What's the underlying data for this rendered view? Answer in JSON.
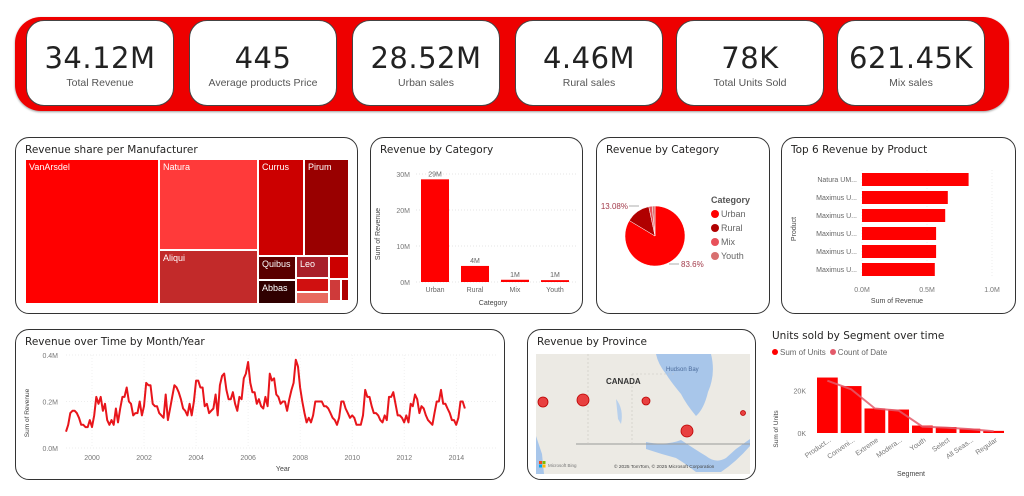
{
  "kpis": [
    {
      "value": "34.12M",
      "label": "Total Revenue"
    },
    {
      "value": "445",
      "label": "Average products Price"
    },
    {
      "value": "28.52M",
      "label": "Urban sales"
    },
    {
      "value": "4.46M",
      "label": "Rural sales"
    },
    {
      "value": "78K",
      "label": "Total Units Sold"
    },
    {
      "value": "621.45K",
      "label": "Mix sales"
    }
  ],
  "colors": {
    "accent": "#ee0000",
    "series": "#ff0000",
    "line": "#e8151b",
    "secondary": "#e35a6a"
  },
  "treemap": {
    "title": "Revenue share per Manufacturer",
    "cells": [
      {
        "label": "VanArsdel",
        "color": "#ff0000"
      },
      {
        "label": "Natura",
        "color": "#ff3a3a"
      },
      {
        "label": "Aliqui",
        "color": "#c22a2a"
      },
      {
        "label": "Currus",
        "color": "#cc0000"
      },
      {
        "label": "Pirum",
        "color": "#990000"
      },
      {
        "label": "Quibus",
        "color": "#5a0000"
      },
      {
        "label": "Leo",
        "color": "#a8202a"
      },
      {
        "label": "Abbas",
        "color": "#300000"
      },
      {
        "label": "",
        "color": "#cc0000"
      },
      {
        "label": "",
        "color": "#d01010"
      },
      {
        "label": "",
        "color": "#e86a60"
      },
      {
        "label": "",
        "color": "#cf3a3a"
      },
      {
        "label": "",
        "color": "#b00000"
      }
    ]
  },
  "chart_data": [
    {
      "id": "revenue-by-category-bar",
      "type": "bar",
      "title": "Revenue by Category",
      "xlabel": "Category",
      "ylabel": "Sum of Revenue",
      "categories": [
        "Urban",
        "Rural",
        "Mix",
        "Youth"
      ],
      "values": [
        28.52,
        4.46,
        0.62,
        0.52
      ],
      "data_labels": [
        "29M",
        "4M",
        "1M",
        "1M"
      ],
      "yticks": [
        "0M",
        "10M",
        "20M",
        "30M"
      ],
      "ylim": [
        0,
        30
      ],
      "grid": true
    },
    {
      "id": "revenue-by-category-pie",
      "type": "pie",
      "title": "Revenue by Category",
      "legend_title": "Category",
      "legend_position": "right",
      "slices": [
        {
          "label": "Urban",
          "value": 83.6,
          "color": "#ff0000"
        },
        {
          "label": "Rural",
          "value": 13.08,
          "color": "#b00000"
        },
        {
          "label": "Mix",
          "value": 1.82,
          "color": "#e8505a"
        },
        {
          "label": "Youth",
          "value": 1.5,
          "color": "#d87070"
        }
      ],
      "data_labels": [
        "83.6%",
        "13.08%"
      ]
    },
    {
      "id": "top6-revenue-by-product",
      "type": "bar",
      "orientation": "horizontal",
      "title": "Top 6 Revenue by Product",
      "xlabel": "Sum of Revenue",
      "ylabel": "Product",
      "categories": [
        "Natura UM...",
        "Maximus U...",
        "Maximus U...",
        "Maximus U...",
        "Maximus U...",
        "Maximus U..."
      ],
      "values": [
        0.82,
        0.66,
        0.64,
        0.57,
        0.57,
        0.56
      ],
      "xticks": [
        "0.0M",
        "0.5M",
        "1.0M"
      ],
      "xlim": [
        0,
        1.0
      ]
    },
    {
      "id": "revenue-over-time",
      "type": "line",
      "title": "Revenue over Time by Month/Year",
      "xlabel": "Year",
      "ylabel": "Sum of Revenue",
      "xticks": [
        "2000",
        "2002",
        "2004",
        "2006",
        "2008",
        "2010",
        "2012",
        "2014"
      ],
      "yticks": [
        "0.0M",
        "0.2M",
        "0.4M"
      ],
      "xlim": [
        1999.0,
        2015.6
      ],
      "ylim": [
        0,
        0.4
      ],
      "x_start": 1999.0,
      "x_step": 0.0833,
      "values": [
        0.07,
        0.1,
        0.15,
        0.16,
        0.16,
        0.15,
        0.13,
        0.1,
        0.1,
        0.09,
        0.09,
        0.12,
        0.09,
        0.14,
        0.22,
        0.19,
        0.22,
        0.16,
        0.19,
        0.12,
        0.1,
        0.12,
        0.1,
        0.17,
        0.11,
        0.17,
        0.22,
        0.22,
        0.26,
        0.2,
        0.19,
        0.14,
        0.15,
        0.15,
        0.2,
        0.14,
        0.18,
        0.28,
        0.27,
        0.27,
        0.19,
        0.18,
        0.18,
        0.15,
        0.14,
        0.13,
        0.23,
        0.12,
        0.17,
        0.22,
        0.27,
        0.26,
        0.24,
        0.21,
        0.17,
        0.16,
        0.14,
        0.19,
        0.14,
        0.2,
        0.29,
        0.29,
        0.26,
        0.26,
        0.18,
        0.19,
        0.15,
        0.16,
        0.17,
        0.23,
        0.14,
        0.27,
        0.31,
        0.32,
        0.25,
        0.21,
        0.21,
        0.24,
        0.19,
        0.16,
        0.22,
        0.21,
        0.3,
        0.32,
        0.37,
        0.28,
        0.24,
        0.24,
        0.19,
        0.21,
        0.18,
        0.17,
        0.22,
        0.18,
        0.32,
        0.29,
        0.3,
        0.23,
        0.22,
        0.19,
        0.2,
        0.2,
        0.16,
        0.21,
        0.25,
        0.28,
        0.38,
        0.35,
        0.26,
        0.2,
        0.15,
        0.11,
        0.13,
        0.11,
        0.14,
        0.2,
        0.2,
        0.2,
        0.2,
        0.18,
        0.18,
        0.17,
        0.15,
        0.13,
        0.12,
        0.1,
        0.13,
        0.2,
        0.2,
        0.17,
        0.15,
        0.13,
        0.14,
        0.13,
        0.1,
        0.1,
        0.1,
        0.14,
        0.25,
        0.22,
        0.22,
        0.18,
        0.15,
        0.15,
        0.14,
        0.12,
        0.11,
        0.14,
        0.12,
        0.22,
        0.22,
        0.24,
        0.19,
        0.14,
        0.14,
        0.13,
        0.11,
        0.14,
        0.11,
        0.19,
        0.18,
        0.23,
        0.21,
        0.15,
        0.18,
        0.17,
        0.14,
        0.12,
        0.11,
        0.1,
        0.15,
        0.2,
        0.2,
        0.25,
        0.19,
        0.19,
        0.17,
        0.15,
        0.12,
        0.12,
        0.1,
        0.13,
        0.2,
        0.2,
        0.17
      ],
      "grid": true
    },
    {
      "id": "units-by-segment",
      "type": "bar",
      "title": "Units sold by Segment over time",
      "xlabel": "Segment",
      "ylabel": "Sum of Units",
      "categories": [
        "Product...",
        "Conveni...",
        "Extreme",
        "Modera...",
        "Youth",
        "Select",
        "All Seas...",
        "Regular"
      ],
      "series": [
        {
          "name": "Sum of Units",
          "type": "bar",
          "values": [
            26000,
            22000,
            11500,
            11000,
            3500,
            2800,
            2000,
            1000
          ],
          "color": "#ff0000"
        },
        {
          "name": "Count of Date",
          "type": "line",
          "values": [
            24500,
            20500,
            11500,
            10500,
            3000,
            2500,
            1800,
            800
          ],
          "color": "#e35a6a"
        }
      ],
      "yticks": [
        "0K",
        "20K"
      ],
      "ylim": [
        0,
        30000
      ],
      "legend_position": "top-left"
    }
  ],
  "map": {
    "title": "Revenue by Province",
    "country_label": "CANADA",
    "water_label": "Hudson Bay",
    "bing_label": "Microsoft Bing",
    "attribution": "© 2025 TomTom, © 2025 Microsoft Corporation",
    "bubbles": [
      {
        "name": "British Columbia",
        "size": "large"
      },
      {
        "name": "Alberta",
        "size": "large"
      },
      {
        "name": "Manitoba",
        "size": "medium"
      },
      {
        "name": "Ontario",
        "size": "large"
      },
      {
        "name": "Quebec",
        "size": "small"
      }
    ]
  }
}
